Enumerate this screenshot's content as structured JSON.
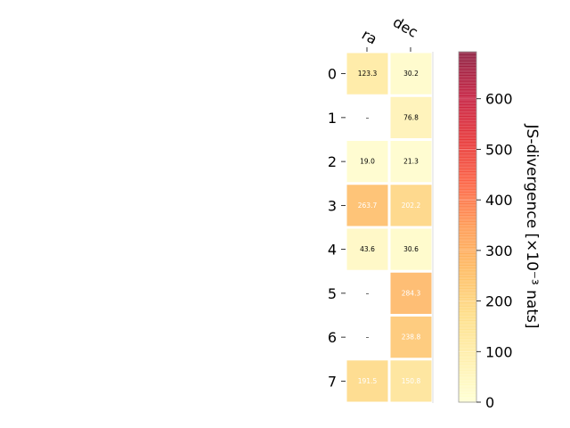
{
  "chart_data": {
    "type": "heatmap",
    "columns": [
      "ra",
      "dec"
    ],
    "rows": [
      "0",
      "1",
      "2",
      "3",
      "4",
      "5",
      "6",
      "7"
    ],
    "values": [
      [
        123.3,
        30.2
      ],
      [
        null,
        76.8
      ],
      [
        19.0,
        21.3
      ],
      [
        263.7,
        202.2
      ],
      [
        43.6,
        30.6
      ],
      [
        null,
        284.3
      ],
      [
        null,
        238.8
      ],
      [
        191.5,
        150.8
      ]
    ],
    "labels": [
      [
        "123.3",
        "30.2"
      ],
      [
        "–",
        "76.8"
      ],
      [
        "19.0",
        "21.3"
      ],
      [
        "263.7",
        "202.2"
      ],
      [
        "43.6",
        "30.6"
      ],
      [
        "–",
        "284.3"
      ],
      [
        "–",
        "238.8"
      ],
      [
        "191.5",
        "150.8"
      ]
    ],
    "colorbar": {
      "label": "JS-divergence [×10⁻³ nats]",
      "range": [
        0,
        693
      ],
      "ticks": [
        "0",
        "100",
        "200",
        "300",
        "400",
        "500",
        "600"
      ],
      "tick_values": [
        0,
        100,
        200,
        300,
        400,
        500,
        600
      ],
      "colormap": "YlOrRd"
    }
  }
}
